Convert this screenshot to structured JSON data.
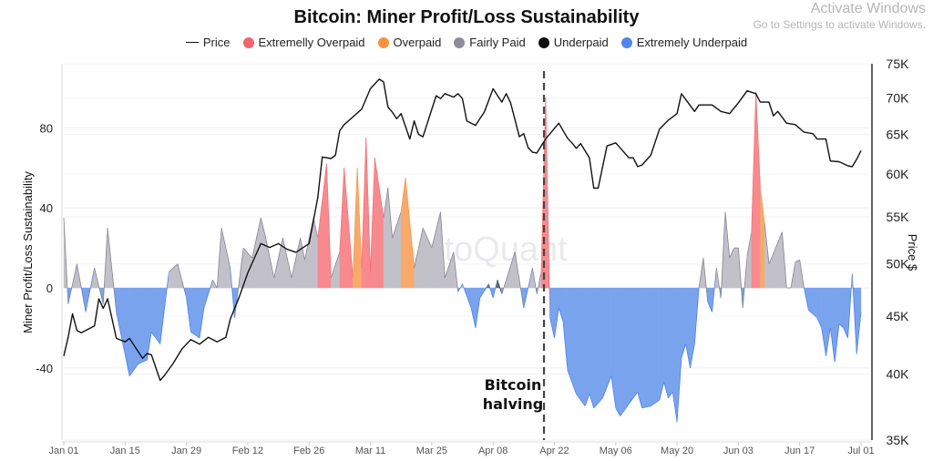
{
  "chart_data": {
    "type": "area",
    "title": "Bitcoin: Miner Profit/Loss Sustainability",
    "legend": [
      {
        "key": "price",
        "label": "Price",
        "color": "#111111",
        "marker": "line"
      },
      {
        "key": "EO",
        "label": "Extremelly Overpaid",
        "color": "#f4646c"
      },
      {
        "key": "O",
        "label": "Overpaid",
        "color": "#f7923e"
      },
      {
        "key": "F",
        "label": "Fairly Paid",
        "color": "#8f8c99"
      },
      {
        "key": "U",
        "label": "Underpaid",
        "color": "#111111"
      },
      {
        "key": "EU",
        "label": "Extremely Underpaid",
        "color": "#4f86ec"
      }
    ],
    "legend_position": "top",
    "area_colors": {
      "EO": "#f78a8f",
      "O": "#f8aa6a",
      "F": "#c2c0c8",
      "U": "#6b6b6b",
      "EU": "#7aa3ee"
    },
    "ylabel_left": "Miner Profit/Loss Sustainability",
    "ylabel_right": "Price $",
    "xlim": [
      "2024-01-01",
      "2024-07-01"
    ],
    "ylim_left": [
      -76,
      112
    ],
    "ylim_right": [
      35000,
      75000
    ],
    "right_scale": "log",
    "grid": "horizontal",
    "x_ticks": [
      "Jan 01",
      "Jan 15",
      "Jan 29",
      "Feb 12",
      "Feb 26",
      "Mar 11",
      "Mar 25",
      "Apr 08",
      "Apr 22",
      "May 06",
      "May 20",
      "Jun 03",
      "Jun 17",
      "Jul 01"
    ],
    "x_tick_dates": [
      "2024-01-01",
      "2024-01-15",
      "2024-01-29",
      "2024-02-12",
      "2024-02-26",
      "2024-03-11",
      "2024-03-25",
      "2024-04-08",
      "2024-04-22",
      "2024-05-06",
      "2024-05-20",
      "2024-06-03",
      "2024-06-17",
      "2024-07-01"
    ],
    "left_ticks": [
      80,
      40,
      0,
      -40
    ],
    "right_ticks": [
      {
        "value": 75000,
        "label": "75K"
      },
      {
        "value": 70000,
        "label": "70K"
      },
      {
        "value": 65000,
        "label": "65K"
      },
      {
        "value": 60000,
        "label": "60K"
      },
      {
        "value": 55000,
        "label": "55K"
      },
      {
        "value": 50000,
        "label": "50K"
      },
      {
        "value": 45000,
        "label": "45K"
      },
      {
        "value": 40000,
        "label": "40K"
      },
      {
        "value": 35000,
        "label": "35K"
      }
    ],
    "annotation": {
      "lines": [
        "Bitcoin",
        "halving"
      ],
      "date": "2024-04-19"
    },
    "watermark": "CryptoQuant",
    "sustainability": [
      [
        "2024-01-01",
        35,
        "F"
      ],
      [
        "2024-01-02",
        -8,
        "EU"
      ],
      [
        "2024-01-04",
        12,
        "F"
      ],
      [
        "2024-01-06",
        -12,
        "EU"
      ],
      [
        "2024-01-08",
        10,
        "F"
      ],
      [
        "2024-01-10",
        -8,
        "EU"
      ],
      [
        "2024-01-11",
        30,
        "F"
      ],
      [
        "2024-01-13",
        -12,
        "EU"
      ],
      [
        "2024-01-16",
        -44,
        "EU"
      ],
      [
        "2024-01-18",
        -38,
        "EU"
      ],
      [
        "2024-01-20",
        -36,
        "EU"
      ],
      [
        "2024-01-21",
        -22,
        "EU"
      ],
      [
        "2024-01-23",
        -28,
        "EU"
      ],
      [
        "2024-01-25",
        8,
        "F"
      ],
      [
        "2024-01-27",
        12,
        "F"
      ],
      [
        "2024-01-29",
        -5,
        "EU"
      ],
      [
        "2024-01-30",
        -22,
        "EU"
      ],
      [
        "2024-02-01",
        -25,
        "EU"
      ],
      [
        "2024-02-02",
        -10,
        "EU"
      ],
      [
        "2024-02-04",
        4,
        "F"
      ],
      [
        "2024-02-05",
        0,
        "F"
      ],
      [
        "2024-02-06",
        30,
        "F"
      ],
      [
        "2024-02-08",
        10,
        "F"
      ],
      [
        "2024-02-09",
        -15,
        "EU"
      ],
      [
        "2024-02-11",
        20,
        "F"
      ],
      [
        "2024-02-13",
        15,
        "F"
      ],
      [
        "2024-02-15",
        35,
        "F"
      ],
      [
        "2024-02-16",
        26,
        "F"
      ],
      [
        "2024-02-18",
        5,
        "U"
      ],
      [
        "2024-02-20",
        25,
        "F"
      ],
      [
        "2024-02-22",
        5,
        "U"
      ],
      [
        "2024-02-24",
        25,
        "F"
      ],
      [
        "2024-02-25",
        14,
        "F"
      ],
      [
        "2024-02-27",
        35,
        "F"
      ],
      [
        "2024-02-28",
        25,
        "F"
      ],
      [
        "2024-03-01",
        62,
        "EO"
      ],
      [
        "2024-03-02",
        5,
        "F"
      ],
      [
        "2024-03-04",
        18,
        "F"
      ],
      [
        "2024-03-05",
        60,
        "EO"
      ],
      [
        "2024-03-07",
        5,
        "F"
      ],
      [
        "2024-03-08",
        60,
        "O"
      ],
      [
        "2024-03-09",
        10,
        "F"
      ],
      [
        "2024-03-10",
        75,
        "EO"
      ],
      [
        "2024-03-11",
        8,
        "F"
      ],
      [
        "2024-03-12",
        65,
        "EO"
      ],
      [
        "2024-03-14",
        35,
        "F"
      ],
      [
        "2024-03-15",
        50,
        "F"
      ],
      [
        "2024-03-16",
        25,
        "F"
      ],
      [
        "2024-03-18",
        38,
        "F"
      ],
      [
        "2024-03-19",
        55,
        "O"
      ],
      [
        "2024-03-21",
        10,
        "F"
      ],
      [
        "2024-03-22",
        20,
        "F"
      ],
      [
        "2024-03-23",
        30,
        "F"
      ],
      [
        "2024-03-25",
        20,
        "F"
      ],
      [
        "2024-03-27",
        38,
        "F"
      ],
      [
        "2024-03-28",
        5,
        "F"
      ],
      [
        "2024-03-30",
        18,
        "F"
      ],
      [
        "2024-03-31",
        -2,
        "EU"
      ],
      [
        "2024-04-01",
        2,
        "F"
      ],
      [
        "2024-04-03",
        -10,
        "EU"
      ],
      [
        "2024-04-04",
        -20,
        "EU"
      ],
      [
        "2024-04-05",
        -5,
        "EU"
      ],
      [
        "2024-04-07",
        2,
        "U"
      ],
      [
        "2024-04-08",
        -5,
        "EU"
      ],
      [
        "2024-04-09",
        4,
        "U"
      ],
      [
        "2024-04-10",
        -3,
        "EU"
      ],
      [
        "2024-04-13",
        18,
        "F"
      ],
      [
        "2024-04-15",
        -10,
        "EU"
      ],
      [
        "2024-04-17",
        10,
        "F"
      ],
      [
        "2024-04-18",
        -3,
        "EU"
      ],
      [
        "2024-04-19",
        8,
        "F"
      ],
      [
        "2024-04-20",
        95,
        "EO"
      ],
      [
        "2024-04-21",
        -15,
        "EU"
      ],
      [
        "2024-04-22",
        -25,
        "EU"
      ],
      [
        "2024-04-23",
        -10,
        "EU"
      ],
      [
        "2024-04-24",
        -17,
        "EU"
      ],
      [
        "2024-04-25",
        -41,
        "EU"
      ],
      [
        "2024-04-27",
        -53,
        "EU"
      ],
      [
        "2024-04-29",
        -59,
        "EU"
      ],
      [
        "2024-04-30",
        -53,
        "EU"
      ],
      [
        "2024-05-01",
        -60,
        "EU"
      ],
      [
        "2024-05-03",
        -55,
        "EU"
      ],
      [
        "2024-05-05",
        -44,
        "EU"
      ],
      [
        "2024-05-06",
        -60,
        "EU"
      ],
      [
        "2024-05-07",
        -64,
        "EU"
      ],
      [
        "2024-05-09",
        -58,
        "EU"
      ],
      [
        "2024-05-11",
        -52,
        "EU"
      ],
      [
        "2024-05-12",
        -60,
        "EU"
      ],
      [
        "2024-05-14",
        -59,
        "EU"
      ],
      [
        "2024-05-16",
        -56,
        "EU"
      ],
      [
        "2024-05-17",
        -47,
        "EU"
      ],
      [
        "2024-05-18",
        -55,
        "EU"
      ],
      [
        "2024-05-19",
        -52,
        "EU"
      ],
      [
        "2024-05-20",
        -67,
        "EU"
      ],
      [
        "2024-05-21",
        -35,
        "EU"
      ],
      [
        "2024-05-22",
        -28,
        "EU"
      ],
      [
        "2024-05-23",
        -40,
        "EU"
      ],
      [
        "2024-05-24",
        -28,
        "EU"
      ],
      [
        "2024-05-25",
        0,
        "F"
      ],
      [
        "2024-05-26",
        15,
        "F"
      ],
      [
        "2024-05-27",
        -7,
        "EU"
      ],
      [
        "2024-05-28",
        -12,
        "EU"
      ],
      [
        "2024-05-29",
        10,
        "F"
      ],
      [
        "2024-05-30",
        -5,
        "EU"
      ],
      [
        "2024-05-31",
        38,
        "F"
      ],
      [
        "2024-06-01",
        15,
        "F"
      ],
      [
        "2024-06-02",
        20,
        "F"
      ],
      [
        "2024-06-03",
        20,
        "F"
      ],
      [
        "2024-06-04",
        -10,
        "EU"
      ],
      [
        "2024-06-05",
        16,
        "F"
      ],
      [
        "2024-06-06",
        28,
        "F"
      ],
      [
        "2024-06-07",
        98,
        "EO"
      ],
      [
        "2024-06-08",
        50,
        "O"
      ],
      [
        "2024-06-09",
        32,
        "F"
      ],
      [
        "2024-06-10",
        12,
        "F"
      ],
      [
        "2024-06-13",
        28,
        "F"
      ],
      [
        "2024-06-14",
        0,
        "F"
      ],
      [
        "2024-06-15",
        0,
        "F"
      ],
      [
        "2024-06-16",
        13,
        "F"
      ],
      [
        "2024-06-17",
        14,
        "F"
      ],
      [
        "2024-06-18",
        0,
        "F"
      ],
      [
        "2024-06-19",
        -11,
        "EU"
      ],
      [
        "2024-06-21",
        -15,
        "EU"
      ],
      [
        "2024-06-22",
        -20,
        "EU"
      ],
      [
        "2024-06-23",
        -34,
        "EU"
      ],
      [
        "2024-06-24",
        -20,
        "EU"
      ],
      [
        "2024-06-25",
        -37,
        "EU"
      ],
      [
        "2024-06-26",
        -18,
        "EU"
      ],
      [
        "2024-06-27",
        -20,
        "EU"
      ],
      [
        "2024-06-28",
        -25,
        "EU"
      ],
      [
        "2024-06-29",
        7,
        "F"
      ],
      [
        "2024-06-30",
        -33,
        "EU"
      ],
      [
        "2024-07-01",
        -12,
        "EU"
      ]
    ],
    "price": [
      [
        "2024-01-01",
        41500
      ],
      [
        "2024-01-02",
        43100
      ],
      [
        "2024-01-03",
        45200
      ],
      [
        "2024-01-04",
        43700
      ],
      [
        "2024-01-05",
        43500
      ],
      [
        "2024-01-06",
        43700
      ],
      [
        "2024-01-08",
        44100
      ],
      [
        "2024-01-09",
        46600
      ],
      [
        "2024-01-10",
        45700
      ],
      [
        "2024-01-11",
        46600
      ],
      [
        "2024-01-13",
        43000
      ],
      [
        "2024-01-15",
        42700
      ],
      [
        "2024-01-16",
        43000
      ],
      [
        "2024-01-19",
        41300
      ],
      [
        "2024-01-20",
        41700
      ],
      [
        "2024-01-21",
        41600
      ],
      [
        "2024-01-23",
        39500
      ],
      [
        "2024-01-24",
        39900
      ],
      [
        "2024-01-26",
        40900
      ],
      [
        "2024-01-28",
        42100
      ],
      [
        "2024-01-30",
        42900
      ],
      [
        "2024-02-01",
        42500
      ],
      [
        "2024-02-03",
        43100
      ],
      [
        "2024-02-05",
        42700
      ],
      [
        "2024-02-07",
        43100
      ],
      [
        "2024-02-08",
        44700
      ],
      [
        "2024-02-10",
        46700
      ],
      [
        "2024-02-12",
        49100
      ],
      [
        "2024-02-15",
        52100
      ],
      [
        "2024-02-17",
        51700
      ],
      [
        "2024-02-19",
        52100
      ],
      [
        "2024-02-21",
        51500
      ],
      [
        "2024-02-23",
        51200
      ],
      [
        "2024-02-26",
        52100
      ],
      [
        "2024-02-28",
        57200
      ],
      [
        "2024-02-29",
        62100
      ],
      [
        "2024-03-02",
        61900
      ],
      [
        "2024-03-03",
        62300
      ],
      [
        "2024-03-04",
        65500
      ],
      [
        "2024-03-05",
        66300
      ],
      [
        "2024-03-09",
        68400
      ],
      [
        "2024-03-11",
        71300
      ],
      [
        "2024-03-13",
        72700
      ],
      [
        "2024-03-14",
        72300
      ],
      [
        "2024-03-15",
        68700
      ],
      [
        "2024-03-16",
        68000
      ],
      [
        "2024-03-17",
        67100
      ],
      [
        "2024-03-18",
        67800
      ],
      [
        "2024-03-20",
        64400
      ],
      [
        "2024-03-21",
        66800
      ],
      [
        "2024-03-22",
        65000
      ],
      [
        "2024-03-23",
        64700
      ],
      [
        "2024-03-26",
        70300
      ],
      [
        "2024-03-27",
        69900
      ],
      [
        "2024-03-28",
        70600
      ],
      [
        "2024-03-30",
        70100
      ],
      [
        "2024-03-31",
        70600
      ],
      [
        "2024-04-01",
        69900
      ],
      [
        "2024-04-02",
        66800
      ],
      [
        "2024-04-04",
        66200
      ],
      [
        "2024-04-05",
        67100
      ],
      [
        "2024-04-06",
        68000
      ],
      [
        "2024-04-08",
        71300
      ],
      [
        "2024-04-10",
        69400
      ],
      [
        "2024-04-11",
        70600
      ],
      [
        "2024-04-12",
        69300
      ],
      [
        "2024-04-14",
        64700
      ],
      [
        "2024-04-15",
        65100
      ],
      [
        "2024-04-16",
        63300
      ],
      [
        "2024-04-17",
        62700
      ],
      [
        "2024-04-18",
        62600
      ],
      [
        "2024-04-20",
        64400
      ],
      [
        "2024-04-23",
        66500
      ],
      [
        "2024-04-25",
        64500
      ],
      [
        "2024-04-26",
        63900
      ],
      [
        "2024-04-27",
        63200
      ],
      [
        "2024-04-28",
        63800
      ],
      [
        "2024-04-30",
        62000
      ],
      [
        "2024-05-01",
        58300
      ],
      [
        "2024-05-02",
        58300
      ],
      [
        "2024-05-04",
        63500
      ],
      [
        "2024-05-06",
        63900
      ],
      [
        "2024-05-09",
        62000
      ],
      [
        "2024-05-10",
        62000
      ],
      [
        "2024-05-11",
        60900
      ],
      [
        "2024-05-12",
        61100
      ],
      [
        "2024-05-14",
        62300
      ],
      [
        "2024-05-16",
        65700
      ],
      [
        "2024-05-18",
        66900
      ],
      [
        "2024-05-20",
        67800
      ],
      [
        "2024-05-21",
        70600
      ],
      [
        "2024-05-24",
        68100
      ],
      [
        "2024-05-25",
        69000
      ],
      [
        "2024-05-28",
        69000
      ],
      [
        "2024-05-30",
        68100
      ],
      [
        "2024-06-01",
        67800
      ],
      [
        "2024-06-03",
        69300
      ],
      [
        "2024-06-05",
        71000
      ],
      [
        "2024-06-07",
        70600
      ],
      [
        "2024-06-08",
        69400
      ],
      [
        "2024-06-10",
        69400
      ],
      [
        "2024-06-11",
        67500
      ],
      [
        "2024-06-12",
        68100
      ],
      [
        "2024-06-14",
        66500
      ],
      [
        "2024-06-16",
        66300
      ],
      [
        "2024-06-18",
        65300
      ],
      [
        "2024-06-20",
        65100
      ],
      [
        "2024-06-21",
        64400
      ],
      [
        "2024-06-23",
        64400
      ],
      [
        "2024-06-24",
        61600
      ],
      [
        "2024-06-26",
        61500
      ],
      [
        "2024-06-28",
        61000
      ],
      [
        "2024-06-29",
        60900
      ],
      [
        "2024-06-30",
        61800
      ],
      [
        "2024-07-01",
        62900
      ]
    ]
  },
  "os_overlay": {
    "line1": "Activate Windows",
    "line2": "Go to Settings to activate Windows."
  }
}
